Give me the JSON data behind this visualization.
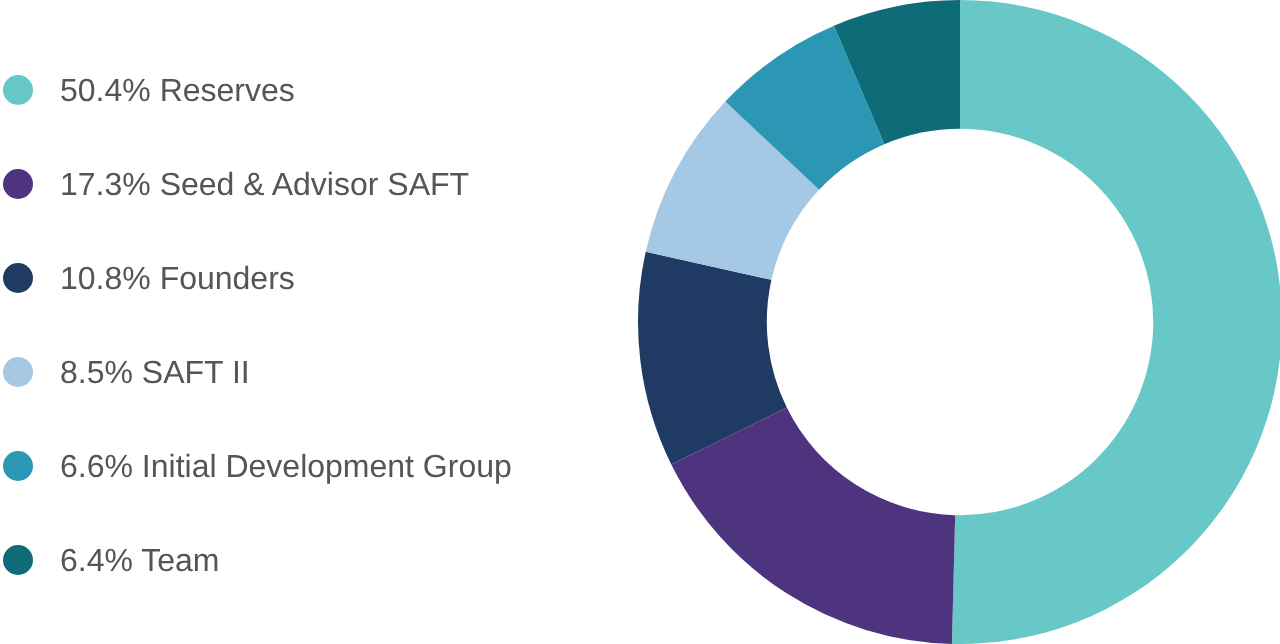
{
  "chart_data": {
    "type": "donut",
    "categories": [
      "50.4% Reserves",
      "17.3% Seed & Advisor SAFT",
      "10.8% Founders",
      "8.5% SAFT II",
      "6.6% Initial Development Group",
      "6.4% Team"
    ],
    "values": [
      50.4,
      17.3,
      10.8,
      8.5,
      6.6,
      6.4
    ],
    "colors": [
      "#68c7c7",
      "#4e347f",
      "#203b63",
      "#a5c8e5",
      "#2b97b5",
      "#0d6c78"
    ],
    "legend": "left"
  }
}
